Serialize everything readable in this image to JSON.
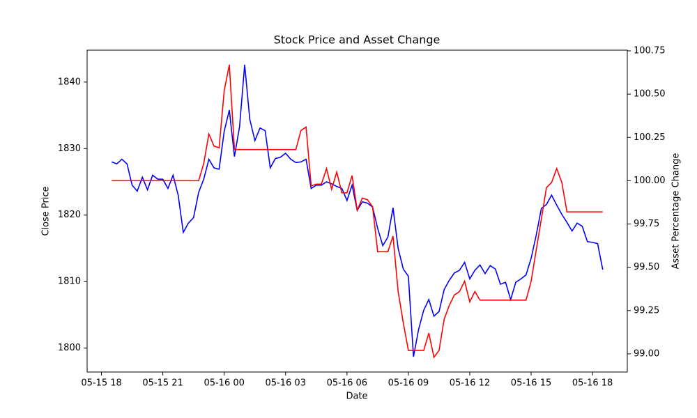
{
  "chart_data": {
    "type": "line",
    "title": "Stock Price and Asset Change",
    "xlabel": "Date",
    "ylabel": "Close Price",
    "y2label": "Asset Percentage Change",
    "x": [
      "05-15 18:30",
      "05-15 18:45",
      "05-15 19:00",
      "05-15 19:15",
      "05-15 19:30",
      "05-15 19:45",
      "05-15 20:00",
      "05-15 20:15",
      "05-15 20:30",
      "05-15 20:45",
      "05-15 21:00",
      "05-15 21:15",
      "05-15 21:30",
      "05-15 21:45",
      "05-15 22:00",
      "05-15 22:15",
      "05-15 22:30",
      "05-15 22:45",
      "05-15 23:00",
      "05-15 23:15",
      "05-15 23:30",
      "05-15 23:45",
      "05-16 00:00",
      "05-16 00:15",
      "05-16 00:30",
      "05-16 00:45",
      "05-16 01:00",
      "05-16 01:15",
      "05-16 01:30",
      "05-16 01:45",
      "05-16 02:00",
      "05-16 02:15",
      "05-16 02:30",
      "05-16 02:45",
      "05-16 03:00",
      "05-16 03:15",
      "05-16 03:30",
      "05-16 03:45",
      "05-16 04:00",
      "05-16 04:15",
      "05-16 04:30",
      "05-16 04:45",
      "05-16 05:00",
      "05-16 05:15",
      "05-16 05:30",
      "05-16 05:45",
      "05-16 06:00",
      "05-16 06:15",
      "05-16 06:30",
      "05-16 06:45",
      "05-16 07:00",
      "05-16 07:15",
      "05-16 07:30",
      "05-16 07:45",
      "05-16 08:00",
      "05-16 08:15",
      "05-16 08:30",
      "05-16 08:45",
      "05-16 09:00",
      "05-16 09:15",
      "05-16 09:30",
      "05-16 09:45",
      "05-16 10:00",
      "05-16 10:15",
      "05-16 10:30",
      "05-16 10:45",
      "05-16 11:00",
      "05-16 11:15",
      "05-16 11:30",
      "05-16 11:45",
      "05-16 12:00",
      "05-16 12:15",
      "05-16 12:30",
      "05-16 12:45",
      "05-16 13:00",
      "05-16 13:15",
      "05-16 13:30",
      "05-16 13:45",
      "05-16 14:00",
      "05-16 14:15",
      "05-16 14:30",
      "05-16 14:45",
      "05-16 15:00",
      "05-16 15:15",
      "05-16 15:30",
      "05-16 15:45",
      "05-16 16:00",
      "05-16 16:15",
      "05-16 16:30",
      "05-16 16:45",
      "05-16 17:00",
      "05-16 17:15",
      "05-16 17:30",
      "05-16 17:45",
      "05-16 18:00",
      "05-16 18:15",
      "05-16 18:30"
    ],
    "series": [
      {
        "name": "Close Price",
        "color": "#0000ff",
        "axis": "y",
        "values": [
          1828.0,
          1827.7,
          1828.4,
          1827.7,
          1824.5,
          1823.6,
          1825.7,
          1823.8,
          1826.0,
          1825.4,
          1825.4,
          1824.0,
          1826.0,
          1823.0,
          1817.4,
          1818.8,
          1819.6,
          1823.4,
          1825.4,
          1828.4,
          1827.1,
          1826.9,
          1832.6,
          1835.8,
          1828.8,
          1833.3,
          1842.6,
          1834.4,
          1831.2,
          1833.1,
          1832.7,
          1827.1,
          1828.5,
          1828.7,
          1829.3,
          1828.4,
          1827.9,
          1828.0,
          1828.4,
          1824.0,
          1824.5,
          1824.5,
          1825.0,
          1824.7,
          1824.3,
          1824.0,
          1822.2,
          1824.5,
          1820.7,
          1822.0,
          1821.8,
          1821.2,
          1818.0,
          1815.4,
          1816.7,
          1821.1,
          1815.0,
          1811.9,
          1810.8,
          1798.7,
          1802.8,
          1805.7,
          1807.3,
          1804.8,
          1805.5,
          1808.8,
          1810.2,
          1811.3,
          1811.7,
          1812.9,
          1810.4,
          1811.7,
          1812.5,
          1811.2,
          1812.4,
          1811.9,
          1809.6,
          1809.9,
          1807.3,
          1809.9,
          1810.4,
          1811.0,
          1813.5,
          1817.0,
          1821.0,
          1821.6,
          1823.0,
          1821.5,
          1820.1,
          1818.9,
          1817.6,
          1818.8,
          1818.3,
          1816.0,
          1815.9,
          1815.7,
          1811.8
        ]
      },
      {
        "name": "Asset Percentage Change",
        "color": "#ff0000",
        "axis": "y2",
        "values": [
          100.0,
          100.0,
          100.0,
          100.0,
          100.0,
          100.0,
          100.0,
          100.0,
          100.0,
          100.0,
          100.0,
          100.0,
          100.0,
          100.0,
          100.0,
          100.0,
          100.0,
          100.0,
          100.1,
          100.27,
          100.2,
          100.19,
          100.52,
          100.67,
          100.18,
          100.18,
          100.18,
          100.18,
          100.18,
          100.18,
          100.18,
          100.18,
          100.18,
          100.18,
          100.18,
          100.18,
          100.18,
          100.29,
          100.31,
          99.97,
          99.98,
          99.98,
          100.07,
          99.95,
          100.05,
          99.93,
          99.93,
          100.03,
          99.83,
          99.9,
          99.89,
          99.85,
          99.59,
          99.59,
          99.59,
          99.68,
          99.36,
          99.18,
          99.02,
          99.02,
          99.02,
          99.02,
          99.12,
          98.98,
          99.02,
          99.2,
          99.28,
          99.34,
          99.36,
          99.42,
          99.3,
          99.36,
          99.31,
          99.31,
          99.31,
          99.31,
          99.31,
          99.31,
          99.31,
          99.31,
          99.31,
          99.31,
          99.42,
          99.6,
          99.78,
          99.96,
          99.99,
          100.07,
          99.99,
          99.82,
          99.82,
          99.82,
          99.82,
          99.82,
          99.82,
          99.82,
          99.82
        ]
      }
    ],
    "xlim": [
      "05-15 17:18",
      "05-16 19:42"
    ],
    "xticks": [
      "05-15 18",
      "05-15 21",
      "05-16 00",
      "05-16 03",
      "05-16 06",
      "05-16 09",
      "05-16 12",
      "05-16 15",
      "05-16 18"
    ],
    "ylim": [
      1796.4,
      1844.8
    ],
    "yticks": [
      1800,
      1810,
      1820,
      1830,
      1840
    ],
    "y2lim": [
      98.895,
      100.754
    ],
    "y2ticks": [
      {
        "value": 99,
        "label": "99.00"
      },
      99.25,
      {
        "value": 99.5,
        "label": "99.50"
      },
      99.75,
      {
        "value": 100,
        "label": "100.00"
      },
      100.25,
      {
        "value": 100.5,
        "label": "100.50"
      },
      100.75
    ],
    "grid": false
  }
}
